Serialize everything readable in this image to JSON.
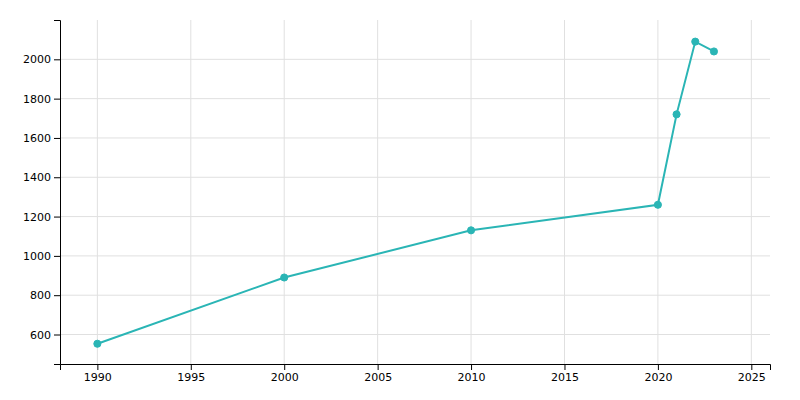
{
  "chart_data": {
    "type": "line",
    "x": [
      1990,
      2000,
      2010,
      2020,
      2021,
      2022,
      2023
    ],
    "values": [
      553,
      890,
      1130,
      1260,
      1720,
      2090,
      2040
    ],
    "color": "#2ab5b5",
    "marker": "circle",
    "xlim": [
      1988,
      2026
    ],
    "ylim": [
      450,
      2200
    ],
    "xticks": [
      1990,
      1995,
      2000,
      2005,
      2010,
      2015,
      2020,
      2025
    ],
    "yticks": [
      600,
      800,
      1000,
      1200,
      1400,
      1600,
      1800,
      2000
    ],
    "grid": true
  }
}
